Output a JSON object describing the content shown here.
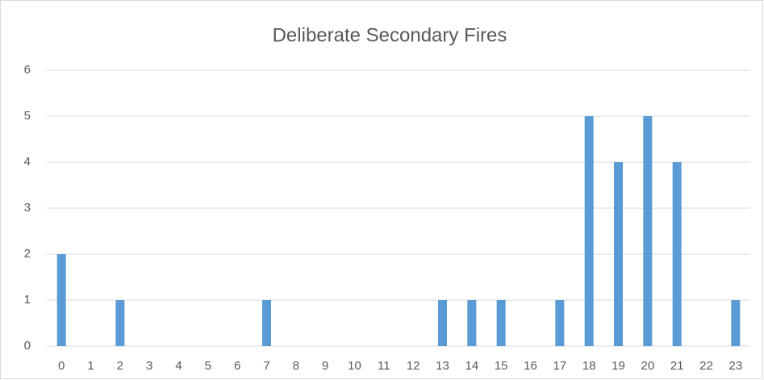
{
  "chart_data": {
    "type": "bar",
    "title": "Deliberate Secondary Fires",
    "categories": [
      "0",
      "1",
      "2",
      "3",
      "4",
      "5",
      "6",
      "7",
      "8",
      "9",
      "10",
      "11",
      "12",
      "13",
      "14",
      "15",
      "16",
      "17",
      "18",
      "19",
      "20",
      "21",
      "22",
      "23"
    ],
    "values": [
      2,
      0,
      1,
      0,
      0,
      0,
      0,
      1,
      0,
      0,
      0,
      0,
      0,
      1,
      1,
      1,
      0,
      1,
      5,
      4,
      5,
      4,
      0,
      1
    ],
    "color": "#5b9bd5",
    "ylim": [
      0,
      6
    ],
    "yticks": [
      0,
      1,
      2,
      3,
      4,
      5,
      6
    ],
    "grid": true
  }
}
